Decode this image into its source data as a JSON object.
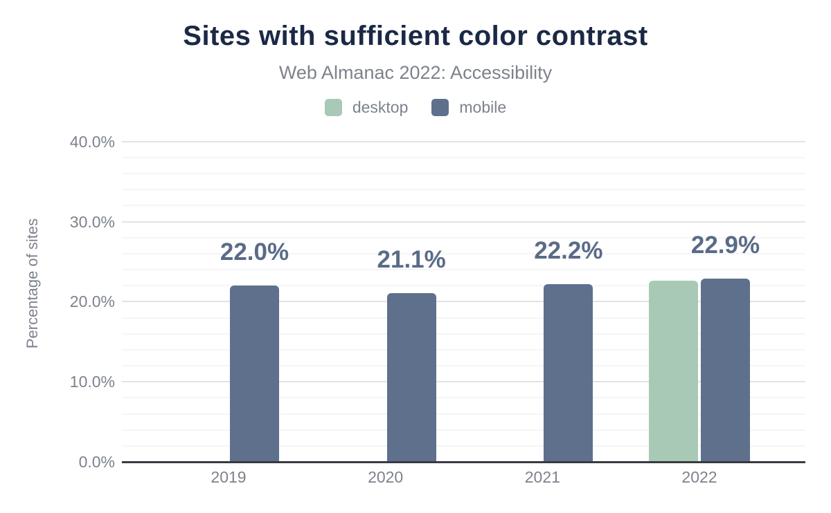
{
  "header": {
    "title": "Sites with sufficient color contrast",
    "subtitle": "Web Almanac 2022: Accessibility"
  },
  "legend": {
    "position": "top",
    "items": [
      {
        "label": "desktop",
        "color": "#a8c9b5"
      },
      {
        "label": "mobile",
        "color": "#5e708c"
      }
    ]
  },
  "axes": {
    "y_title": "Percentage of sites",
    "y_tick_labels": [
      "0.0%",
      "10.0%",
      "20.0%",
      "30.0%",
      "40.0%"
    ],
    "x_tick_labels": [
      "2019",
      "2020",
      "2021",
      "2022"
    ]
  },
  "chart_data": {
    "type": "bar",
    "title": "Sites with sufficient color contrast",
    "subtitle": "Web Almanac 2022: Accessibility",
    "categories": [
      "2019",
      "2020",
      "2021",
      "2022"
    ],
    "series": [
      {
        "name": "desktop",
        "color": "#a8c9b5",
        "values": [
          null,
          null,
          null,
          22.6
        ]
      },
      {
        "name": "mobile",
        "color": "#5e708c",
        "values": [
          22.0,
          21.1,
          22.2,
          22.9
        ]
      }
    ],
    "data_labels": [
      "22.0%",
      "21.1%",
      "22.2%",
      "22.9%"
    ],
    "data_labels_series": "mobile",
    "xlabel": "",
    "ylabel": "Percentage of sites",
    "ylim": [
      0,
      40
    ],
    "ytick_step": 10,
    "ytick_labels": [
      "0.0%",
      "10.0%",
      "20.0%",
      "30.0%",
      "40.0%"
    ],
    "grid": {
      "major_step": 10,
      "minor_step": 2,
      "visible": true
    },
    "legend_position": "top"
  },
  "colors": {
    "title": "#1b2946",
    "subtitle": "#7d828c",
    "tick_label": "#7d828c",
    "data_label": "#5a6b87",
    "axis_line": "#393941",
    "grid_major": "#e3e3e3",
    "grid_minor": "#f5f5f5",
    "background": "#ffffff",
    "desktop": "#a8c9b5",
    "mobile": "#5e708c"
  }
}
